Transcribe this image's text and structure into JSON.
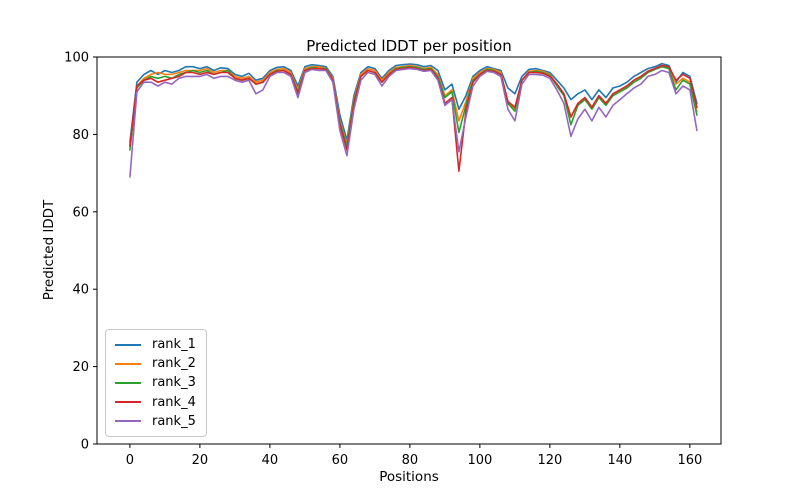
{
  "chart_data": {
    "type": "line",
    "title": "Predicted lDDT per position",
    "xlabel": "Positions",
    "ylabel": "Predicted lDDT",
    "xlim": [
      -9.4,
      168.9
    ],
    "ylim": [
      0,
      100
    ],
    "x_ticks": [
      0,
      20,
      40,
      60,
      80,
      100,
      120,
      140,
      160
    ],
    "y_ticks": [
      0,
      20,
      40,
      60,
      80,
      100
    ],
    "grid": false,
    "legend_position": "lower left",
    "x": [
      0,
      2,
      4,
      6,
      8,
      10,
      12,
      14,
      16,
      18,
      20,
      22,
      24,
      26,
      28,
      30,
      32,
      34,
      36,
      38,
      40,
      42,
      44,
      46,
      48,
      50,
      52,
      54,
      56,
      58,
      60,
      62,
      64,
      66,
      68,
      70,
      72,
      74,
      76,
      78,
      80,
      82,
      84,
      86,
      88,
      90,
      92,
      94,
      96,
      98,
      100,
      102,
      104,
      106,
      108,
      110,
      112,
      114,
      116,
      118,
      120,
      122,
      124,
      126,
      128,
      130,
      132,
      134,
      136,
      138,
      140,
      142,
      144,
      146,
      148,
      150,
      152,
      154,
      156,
      158,
      160,
      162
    ],
    "series": [
      {
        "name": "rank_1",
        "color": "#1f77b4",
        "values": [
          78,
          93.5,
          95.5,
          96.5,
          95.5,
          96.5,
          96,
          96.5,
          97.5,
          97.5,
          97,
          97.5,
          96.5,
          97.2,
          97,
          95.5,
          95,
          95.8,
          94,
          94.5,
          96.5,
          97.3,
          97.5,
          96.5,
          92.5,
          97.5,
          98,
          97.8,
          97.5,
          95,
          85,
          78.5,
          90,
          96,
          97.5,
          97,
          94.5,
          96.5,
          97.8,
          98,
          98.2,
          98,
          97.5,
          97.8,
          96.5,
          91.5,
          93,
          86.5,
          90,
          95,
          96.5,
          97.5,
          97,
          96.5,
          92,
          90.5,
          95,
          96.8,
          97,
          96.5,
          96,
          94,
          92,
          89,
          90.5,
          91.5,
          89,
          91.5,
          89.5,
          92,
          92.5,
          93.5,
          95,
          96,
          97,
          97.5,
          98.3,
          97.8,
          93.5,
          96,
          95,
          88
        ]
      },
      {
        "name": "rank_2",
        "color": "#ff7f0e",
        "values": [
          77,
          92.5,
          94.5,
          95.5,
          96,
          95.5,
          95.5,
          96,
          96.5,
          96.5,
          96.5,
          97,
          96,
          96.5,
          96.5,
          95,
          94.5,
          95,
          93.5,
          94,
          96,
          96.8,
          97,
          96,
          91.5,
          97,
          97.5,
          97.5,
          97,
          94.5,
          83.5,
          77.5,
          89,
          95.5,
          97,
          96.5,
          94,
          96,
          97.3,
          97.5,
          97.8,
          97.5,
          97,
          97.3,
          95.5,
          90,
          91.5,
          83.5,
          88.5,
          94.5,
          96,
          97,
          96.8,
          96,
          88.5,
          86.5,
          94,
          96.3,
          96.5,
          96.3,
          95.5,
          93,
          90.5,
          84.5,
          88,
          89.5,
          87,
          90,
          88,
          90.5,
          91.5,
          92.5,
          94,
          95,
          96.3,
          97,
          97.8,
          97.3,
          93,
          94.5,
          93.5,
          86
        ]
      },
      {
        "name": "rank_3",
        "color": "#2ca02c",
        "values": [
          76,
          92,
          94,
          95,
          94.5,
          95,
          94.5,
          95.5,
          96,
          96.5,
          96,
          96.5,
          95.5,
          96,
          96.5,
          94.5,
          94,
          94.5,
          93,
          93.5,
          95.5,
          96.5,
          96.5,
          95.5,
          91,
          96.5,
          97.3,
          97,
          97,
          94,
          83,
          77,
          88.5,
          95,
          96.5,
          96,
          93.5,
          95.5,
          97,
          97.3,
          97.5,
          97.3,
          96.8,
          97,
          95,
          89.5,
          91,
          80.5,
          87.5,
          94,
          95.5,
          96.8,
          96.5,
          95.5,
          88,
          86,
          94,
          96,
          96.3,
          96,
          95.3,
          92.5,
          90,
          82.5,
          87.5,
          89,
          86.5,
          89.5,
          87.5,
          90,
          91,
          92,
          93.5,
          94.5,
          96,
          96.8,
          97.5,
          97,
          91.5,
          94,
          93,
          85
        ]
      },
      {
        "name": "rank_4",
        "color": "#d62728",
        "values": [
          77,
          92.5,
          94,
          94.5,
          93.5,
          94,
          94.5,
          95,
          96,
          96,
          95.5,
          96,
          95.5,
          96,
          96,
          94.5,
          94,
          94.5,
          93,
          93.5,
          95.5,
          96.3,
          96.5,
          95.5,
          90.5,
          96.5,
          97,
          97,
          96.8,
          94,
          82.5,
          76,
          88,
          95,
          96.5,
          96,
          93.5,
          95.5,
          96.8,
          97,
          97.3,
          97,
          96.5,
          96.8,
          94.5,
          88,
          89.5,
          70.5,
          86,
          93.5,
          95.5,
          96.5,
          96.3,
          95.5,
          88.5,
          87,
          94,
          96,
          96,
          95.8,
          95,
          93,
          90.5,
          84.5,
          88,
          89.5,
          87,
          90,
          88,
          90.5,
          91.5,
          92.5,
          94,
          95,
          96.3,
          97,
          97.8,
          97.5,
          94,
          95.5,
          94.5,
          87
        ]
      },
      {
        "name": "rank_5",
        "color": "#9467bd",
        "values": [
          69,
          91,
          93.5,
          93.5,
          92.5,
          93.5,
          93,
          94.5,
          95,
          95,
          95,
          95.5,
          94.5,
          95,
          95,
          94,
          93.5,
          94,
          90.5,
          91.5,
          95,
          96,
          96,
          95,
          89.5,
          96,
          96.8,
          96.5,
          96.5,
          93.5,
          81,
          74.5,
          86.5,
          94,
          96,
          95.5,
          92.5,
          95,
          96.5,
          96.8,
          97,
          96.8,
          96.3,
          96.5,
          94,
          87.5,
          89,
          75.5,
          84.5,
          92.5,
          95,
          96.3,
          96,
          95,
          86.5,
          83.5,
          93,
          95.5,
          95.5,
          95.3,
          94.5,
          91.5,
          88,
          79.5,
          84,
          86.5,
          83.5,
          87,
          84.5,
          87.5,
          89,
          90.5,
          92,
          93,
          95,
          95.5,
          96.5,
          96,
          90.5,
          92.5,
          91.5,
          81
        ]
      }
    ],
    "axis_color": "#000000",
    "background_color": "#ffffff"
  }
}
